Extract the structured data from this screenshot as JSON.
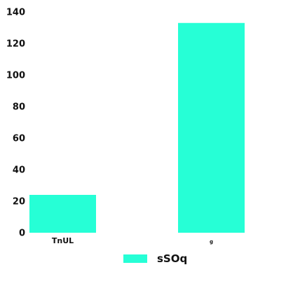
{
  "chart_data": {
    "type": "bar",
    "categories": [
      "TnUL",
      "g"
    ],
    "series": [
      {
        "name": "sSOq",
        "values": [
          24,
          133
        ],
        "color": "#26ffd6"
      }
    ],
    "ylim": [
      0,
      140
    ],
    "yticks": [
      0,
      20,
      40,
      60,
      80,
      100,
      120,
      140
    ],
    "grid": false,
    "legend": "bottom"
  }
}
